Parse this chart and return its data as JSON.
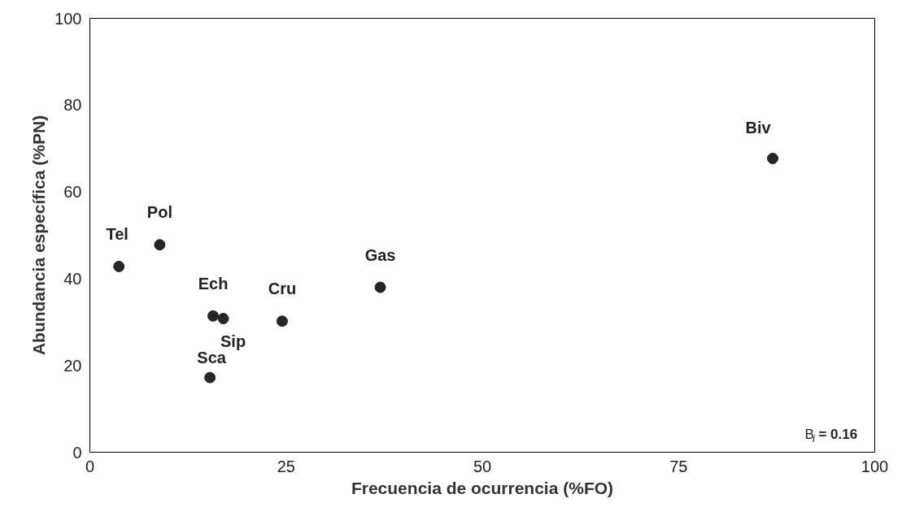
{
  "chart_data": {
    "type": "scatter",
    "xlabel": "Frecuencia de ocurrencia (%FO)",
    "ylabel": "Abundancia específica (%PN)",
    "x": [
      3.7,
      8.9,
      15.7,
      17.0,
      15.3,
      24.5,
      37.0,
      87.0
    ],
    "series": [
      {
        "color": "#262626",
        "values": [
          42.8,
          47.8,
          31.4,
          30.8,
          17.2,
          30.2,
          38.0,
          67.7
        ]
      }
    ],
    "marker": "circle",
    "grid": false,
    "xlim": [
      0,
      100
    ],
    "xticks": [
      0,
      25,
      50,
      75,
      100
    ],
    "ylim": [
      0,
      100
    ],
    "yticks": [
      0,
      20,
      40,
      60,
      80,
      100
    ],
    "annotations": [
      {
        "text": "Tel",
        "x": 3.7,
        "y": 42.8
      },
      {
        "text": "Pol",
        "x": 8.9,
        "y": 47.8
      },
      {
        "text": "Ech",
        "x": 15.7,
        "y": 31.4
      },
      {
        "text": "Sip",
        "x": 17.0,
        "y": 30.8
      },
      {
        "text": "Sca",
        "x": 15.3,
        "y": 17.2
      },
      {
        "text": "Cru",
        "x": 24.5,
        "y": 30.2
      },
      {
        "text": "Gas",
        "x": 37.0,
        "y": 38.0
      },
      {
        "text": "Biv",
        "x": 87.0,
        "y": 67.7
      },
      "B$_{i}$= 0.16"
    ]
  }
}
